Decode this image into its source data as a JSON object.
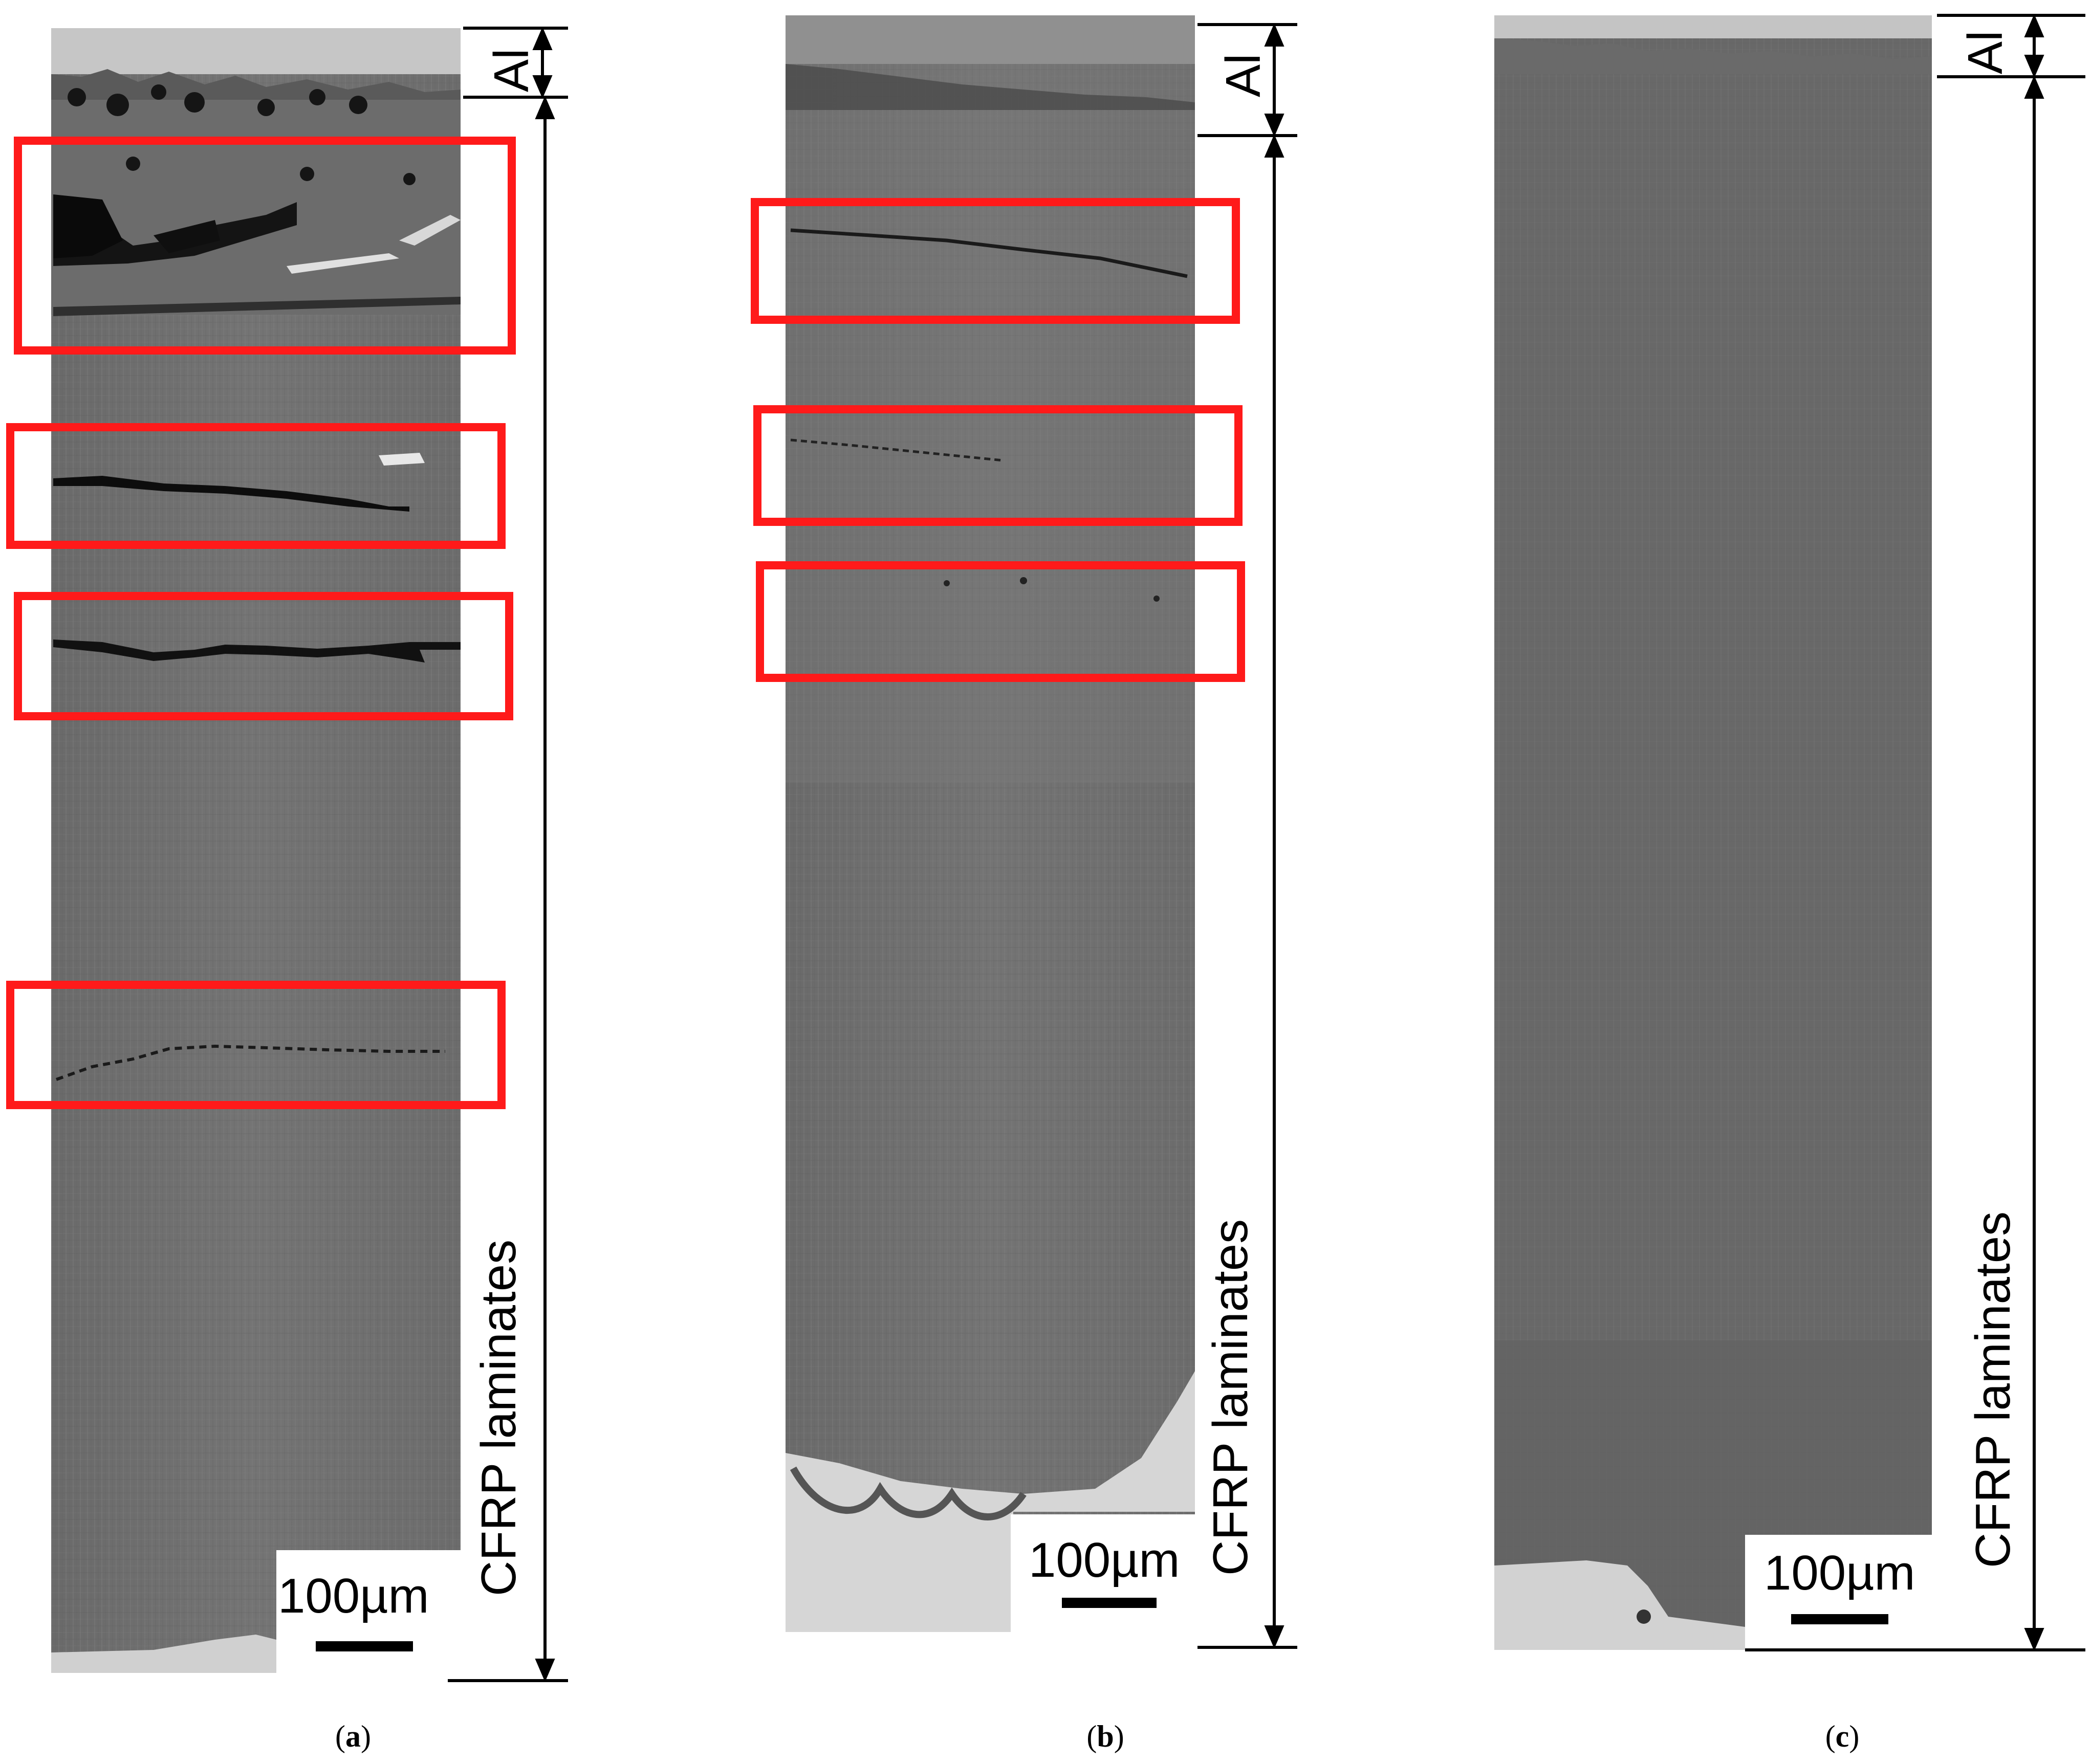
{
  "panels": [
    {
      "id": "a",
      "label": "a",
      "scale_bar": "100µm",
      "layer_top": "Al",
      "layer_main": "CFRP laminates"
    },
    {
      "id": "b",
      "label": "b",
      "scale_bar": "100µm",
      "layer_top": "Al",
      "layer_main": "CFRP laminates"
    },
    {
      "id": "c",
      "label": "c",
      "scale_bar": "100µm",
      "layer_top": "Al",
      "layer_main": "CFRP laminates"
    }
  ],
  "colors": {
    "highlight_box": "#ff1a1a",
    "laminate_gray": "#6e6e6e",
    "aluminum_gray": "#c8c8c8",
    "annotation": "#000000"
  }
}
